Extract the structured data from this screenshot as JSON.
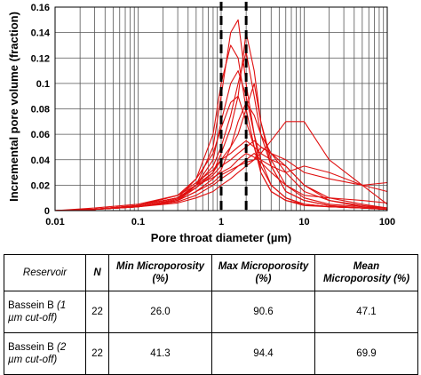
{
  "chart_data": {
    "type": "line",
    "xlabel": "Pore throat diameter (µm)",
    "ylabel": "Incremental pore volume (fraction)",
    "xscale": "log",
    "xlim": [
      0.01,
      100
    ],
    "ylim": [
      0,
      0.16
    ],
    "grid": true,
    "x_ticks": [
      "0.01",
      "0.1",
      "1",
      "10",
      "100"
    ],
    "y_ticks": [
      "0",
      "0.02",
      "0.04",
      "0.06",
      "0.08",
      "0.1",
      "0.12",
      "0.14",
      "0.16"
    ],
    "cutoff_lines_um": [
      1,
      2
    ],
    "series_color": "#e01010",
    "cutoff_color": "#000000",
    "series": [
      {
        "x": [
          0.01,
          0.03,
          0.1,
          0.3,
          0.5,
          0.8,
          1,
          1.3,
          1.6,
          2,
          2.5,
          3,
          4,
          6,
          10,
          20,
          50,
          100
        ],
        "y": [
          0,
          0.001,
          0.003,
          0.008,
          0.02,
          0.05,
          0.09,
          0.14,
          0.15,
          0.1,
          0.06,
          0.03,
          0.015,
          0.008,
          0.005,
          0.003,
          0.002,
          0.001
        ]
      },
      {
        "x": [
          0.01,
          0.03,
          0.1,
          0.3,
          0.5,
          0.8,
          1,
          1.3,
          1.6,
          2,
          2.5,
          3,
          4,
          6,
          10,
          20,
          50,
          100
        ],
        "y": [
          0,
          0.001,
          0.004,
          0.01,
          0.025,
          0.06,
          0.1,
          0.13,
          0.12,
          0.08,
          0.05,
          0.03,
          0.015,
          0.008,
          0.004,
          0.003,
          0.002,
          0.001
        ]
      },
      {
        "x": [
          0.01,
          0.03,
          0.1,
          0.3,
          0.5,
          0.8,
          1,
          1.3,
          1.6,
          2,
          2.5,
          3,
          4,
          6,
          10,
          20,
          50,
          100
        ],
        "y": [
          0,
          0.001,
          0.003,
          0.009,
          0.02,
          0.04,
          0.07,
          0.1,
          0.11,
          0.09,
          0.06,
          0.04,
          0.02,
          0.01,
          0.005,
          0.003,
          0.002,
          0.001
        ]
      },
      {
        "x": [
          0.01,
          0.03,
          0.1,
          0.3,
          0.5,
          0.8,
          1,
          1.3,
          1.6,
          2,
          2.5,
          3,
          4,
          6,
          10,
          20,
          50,
          100
        ],
        "y": [
          0,
          0.001,
          0.004,
          0.012,
          0.025,
          0.045,
          0.065,
          0.085,
          0.09,
          0.07,
          0.05,
          0.035,
          0.02,
          0.01,
          0.005,
          0.003,
          0.002,
          0.001
        ]
      },
      {
        "x": [
          0.01,
          0.03,
          0.1,
          0.3,
          0.5,
          0.8,
          1,
          1.3,
          1.6,
          2,
          2.5,
          3,
          4,
          6,
          10,
          20,
          50,
          100
        ],
        "y": [
          0,
          0.001,
          0.004,
          0.01,
          0.02,
          0.035,
          0.05,
          0.075,
          0.1,
          0.125,
          0.09,
          0.06,
          0.035,
          0.015,
          0.008,
          0.004,
          0.002,
          0.001
        ]
      },
      {
        "x": [
          0.01,
          0.03,
          0.1,
          0.3,
          0.5,
          0.8,
          1,
          1.3,
          1.6,
          2,
          2.5,
          3,
          4,
          6,
          10,
          20,
          50,
          100
        ],
        "y": [
          0,
          0.001,
          0.003,
          0.008,
          0.018,
          0.03,
          0.045,
          0.065,
          0.09,
          0.14,
          0.11,
          0.07,
          0.035,
          0.015,
          0.008,
          0.004,
          0.002,
          0.001
        ]
      },
      {
        "x": [
          0.01,
          0.03,
          0.1,
          0.3,
          0.5,
          0.8,
          1,
          1.3,
          1.6,
          2,
          2.5,
          3,
          4,
          6,
          10,
          20,
          50,
          100
        ],
        "y": [
          0,
          0.001,
          0.004,
          0.01,
          0.02,
          0.03,
          0.04,
          0.05,
          0.06,
          0.08,
          0.1,
          0.07,
          0.04,
          0.02,
          0.01,
          0.005,
          0.003,
          0.002
        ]
      },
      {
        "x": [
          0.01,
          0.03,
          0.1,
          0.3,
          0.5,
          0.8,
          1,
          1.3,
          1.6,
          2,
          2.5,
          3,
          4,
          6,
          10,
          20,
          50,
          100
        ],
        "y": [
          0,
          0.001,
          0.004,
          0.012,
          0.022,
          0.032,
          0.04,
          0.045,
          0.05,
          0.055,
          0.05,
          0.045,
          0.04,
          0.035,
          0.02,
          0.008,
          0.003,
          0.001
        ]
      },
      {
        "x": [
          0.01,
          0.03,
          0.1,
          0.3,
          0.5,
          0.8,
          1,
          1.3,
          1.6,
          2,
          2.5,
          3,
          4,
          6,
          10,
          20,
          50,
          100
        ],
        "y": [
          0,
          0.001,
          0.003,
          0.008,
          0.015,
          0.022,
          0.028,
          0.032,
          0.035,
          0.038,
          0.04,
          0.045,
          0.055,
          0.07,
          0.07,
          0.04,
          0.02,
          0.005
        ]
      },
      {
        "x": [
          0.01,
          0.03,
          0.1,
          0.3,
          0.5,
          0.8,
          1,
          1.3,
          1.6,
          2,
          2.5,
          3,
          4,
          6,
          10,
          20,
          50,
          100
        ],
        "y": [
          0,
          0.001,
          0.004,
          0.01,
          0.018,
          0.028,
          0.035,
          0.04,
          0.045,
          0.05,
          0.055,
          0.05,
          0.045,
          0.04,
          0.03,
          0.025,
          0.02,
          0.015
        ]
      },
      {
        "x": [
          0.01,
          0.03,
          0.1,
          0.3,
          0.5,
          0.8,
          1,
          1.3,
          1.6,
          2,
          2.5,
          3,
          4,
          6,
          10,
          20,
          50,
          100
        ],
        "y": [
          0,
          0.001,
          0.003,
          0.007,
          0.012,
          0.02,
          0.025,
          0.03,
          0.035,
          0.04,
          0.045,
          0.04,
          0.035,
          0.03,
          0.035,
          0.03,
          0.02,
          0.022
        ]
      },
      {
        "x": [
          0.01,
          0.03,
          0.1,
          0.3,
          0.5,
          0.8,
          1,
          1.3,
          1.6,
          2,
          2.5,
          3,
          4,
          6,
          10,
          20,
          50,
          100
        ],
        "y": [
          0,
          0.002,
          0.005,
          0.012,
          0.02,
          0.026,
          0.03,
          0.034,
          0.04,
          0.045,
          0.042,
          0.038,
          0.03,
          0.02,
          0.012,
          0.01,
          0.008,
          0.006
        ]
      },
      {
        "x": [
          0.01,
          0.03,
          0.1,
          0.3,
          0.5,
          0.8,
          1,
          1.3,
          1.6,
          2,
          2.5,
          3,
          4,
          6,
          10,
          20,
          50,
          100
        ],
        "y": [
          0,
          0.001,
          0.003,
          0.006,
          0.01,
          0.015,
          0.02,
          0.025,
          0.03,
          0.035,
          0.04,
          0.05,
          0.045,
          0.035,
          0.02,
          0.01,
          0.005,
          0.002
        ]
      },
      {
        "x": [
          0.01,
          0.03,
          0.1,
          0.3,
          0.5,
          0.8,
          1,
          1.3,
          1.6,
          2,
          2.5,
          3,
          4,
          6,
          10,
          20,
          50,
          100
        ],
        "y": [
          0,
          0.001,
          0.003,
          0.008,
          0.015,
          0.025,
          0.032,
          0.05,
          0.07,
          0.085,
          0.075,
          0.06,
          0.045,
          0.03,
          0.015,
          0.008,
          0.004,
          0.002
        ]
      }
    ]
  },
  "table": {
    "headers": {
      "reservoir": "Reservoir",
      "n": "N",
      "min": "Min Microporosity (%)",
      "max": "Max Microporosity (%)",
      "mean": "Mean Microporosity (%)"
    },
    "rows": [
      {
        "res_main": "Bassein B ",
        "res_em": "(1 µm cut-off)",
        "n": "22",
        "min": "26.0",
        "max": "90.6",
        "mean": "47.1"
      },
      {
        "res_main": "Bassein B ",
        "res_em": "(2 µm cut-off)",
        "n": "22",
        "min": "41.3",
        "max": "94.4",
        "mean": "69.9"
      }
    ]
  }
}
